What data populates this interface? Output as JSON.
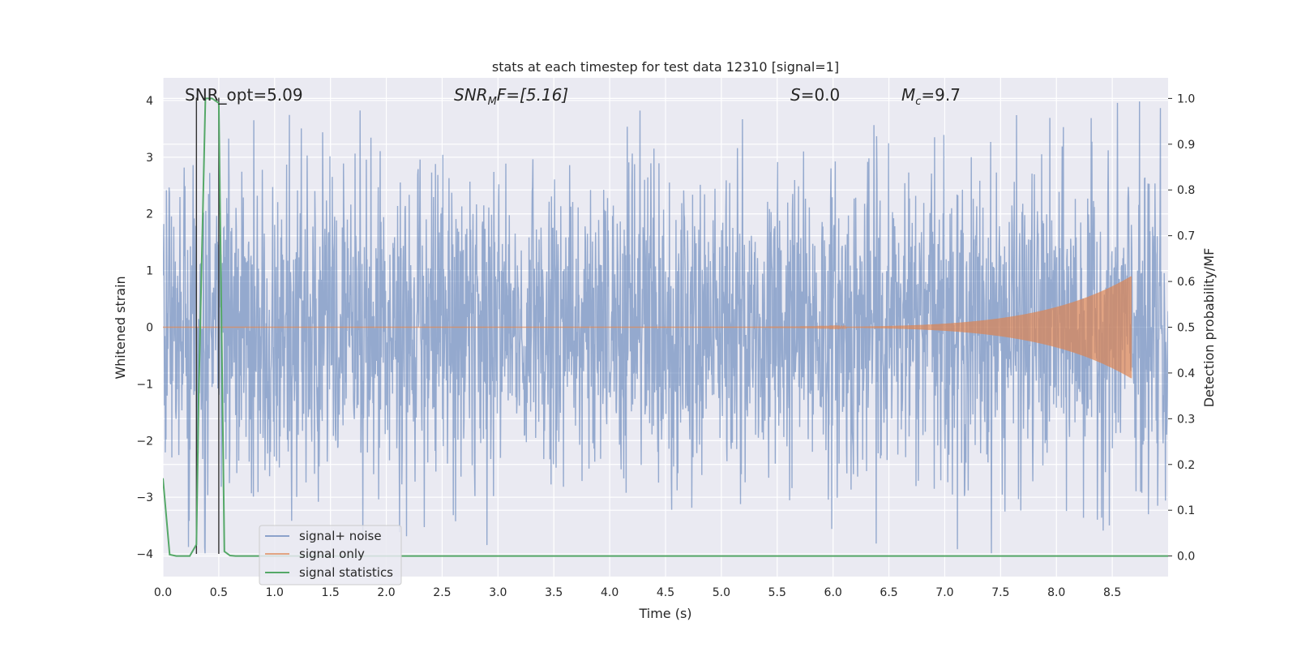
{
  "chart_data": {
    "type": "line",
    "title": "stats at each timestep for test data 12310 [signal=1]",
    "xlabel": "Time (s)",
    "ylabel": "Whitened strain",
    "y2label": "Detection probability/MF",
    "xlim": [
      0.0,
      9.0
    ],
    "ylim": [
      -4.4,
      4.4
    ],
    "y2lim": [
      -0.045,
      1.045
    ],
    "x_ticks": [
      "0.0",
      "0.5",
      "1.0",
      "1.5",
      "2.0",
      "2.5",
      "3.0",
      "3.5",
      "4.0",
      "4.5",
      "5.0",
      "5.5",
      "6.0",
      "6.5",
      "7.0",
      "7.5",
      "8.0",
      "8.5"
    ],
    "y_ticks": [
      "4",
      "3",
      "2",
      "1",
      "0",
      "−1",
      "−2",
      "−3",
      "−4"
    ],
    "y2_ticks": [
      "1.0",
      "0.9",
      "0.8",
      "0.7",
      "0.6",
      "0.5",
      "0.4",
      "0.3",
      "0.2",
      "0.1",
      "0.0"
    ],
    "grid": true,
    "legend_position": "lower-left",
    "annotations": {
      "snr_opt": "SNR_opt=5.09",
      "snr_mf_name": "SNR",
      "snr_mf_sub": "M",
      "snr_mf_rest": "F=[5.16]",
      "s_name": "S",
      "s_rest": "=0.0",
      "mc_name": "M",
      "mc_sub": "c",
      "mc_rest": "=9.7"
    },
    "series": [
      {
        "name": "signal+ noise",
        "color": "#4c72b0",
        "description": "whitened strain data, dense noise between roughly -4 and 4",
        "amplitude_envelope": {
          "typical": 1.6,
          "peak": 4.0
        }
      },
      {
        "name": "signal only",
        "color": "#dd8452",
        "chirp": {
          "t_start": 4.0,
          "t_merger": 8.67,
          "peak_amplitude": 0.9
        }
      },
      {
        "name": "signal statistics",
        "color": "#55a868",
        "x": [
          0.0,
          0.06,
          0.12,
          0.18,
          0.24,
          0.3,
          0.32,
          0.38,
          0.44,
          0.5,
          0.55,
          0.6,
          0.65,
          9.0
        ],
        "y": [
          0.17,
          0.003,
          0.0,
          0.0,
          0.0,
          0.025,
          0.35,
          1.0,
          1.0,
          0.99,
          0.01,
          0.001,
          0.0,
          0.0
        ]
      }
    ],
    "vertical_markers": [
      {
        "x": 0.3,
        "y_low": -4.0,
        "y_high": 4.05
      },
      {
        "x": 0.5,
        "y_low": -4.0,
        "y_high": 4.05
      }
    ]
  }
}
